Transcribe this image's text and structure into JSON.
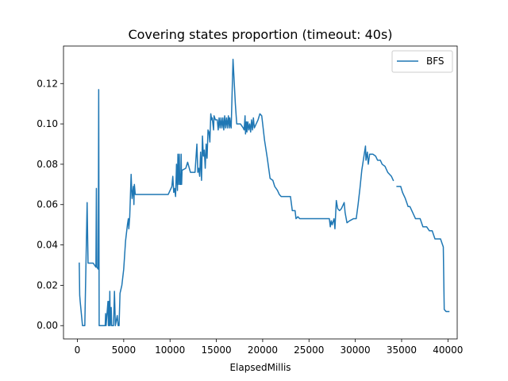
{
  "chart_data": {
    "type": "line",
    "title": "Covering states proportion (timeout: 40s)",
    "xlabel": "ElapsedMillis",
    "ylabel": "",
    "xlim": [
      -1500,
      41000
    ],
    "ylim": [
      -0.0066,
      0.1386
    ],
    "xticks": [
      0,
      5000,
      10000,
      15000,
      20000,
      25000,
      30000,
      35000,
      40000
    ],
    "xtick_labels": [
      "0",
      "5000",
      "10000",
      "15000",
      "20000",
      "25000",
      "30000",
      "35000",
      "40000"
    ],
    "yticks": [
      0.0,
      0.02,
      0.04,
      0.06,
      0.08,
      0.1,
      0.12
    ],
    "ytick_labels": [
      "0.00",
      "0.02",
      "0.04",
      "0.06",
      "0.08",
      "0.10",
      "0.12"
    ],
    "grid": false,
    "legend_position": "upper right",
    "series": [
      {
        "name": "BFS",
        "color": "#1f77b4",
        "segments": [
          [
            [
              200,
              0.031
            ],
            [
              250,
              0.015
            ],
            [
              300,
              0.012
            ],
            [
              550,
              0.0
            ],
            [
              800,
              0.0
            ],
            [
              1050,
              0.061
            ],
            [
              1150,
              0.031
            ],
            [
              1700,
              0.031
            ],
            [
              2000,
              0.029
            ],
            [
              2050,
              0.068
            ],
            [
              2100,
              0.029
            ],
            [
              2250,
              0.028
            ],
            [
              2300,
              0.117
            ],
            [
              2350,
              0.0
            ],
            [
              3000,
              0.0
            ],
            [
              3050,
              0.006
            ],
            [
              3100,
              0.0
            ],
            [
              3300,
              0.012
            ],
            [
              3350,
              0.0
            ],
            [
              3400,
              0.012
            ],
            [
              3450,
              0.0
            ],
            [
              3500,
              0.017
            ],
            [
              3550,
              0.0
            ],
            [
              3650,
              0.009
            ],
            [
              3700,
              0.0
            ],
            [
              3900,
              0.0
            ],
            [
              4000,
              0.017
            ],
            [
              4100,
              0.0
            ],
            [
              4300,
              0.005
            ],
            [
              4400,
              0.0
            ],
            [
              4500,
              0.0
            ],
            [
              4600,
              0.016
            ],
            [
              4800,
              0.02
            ],
            [
              5000,
              0.028
            ],
            [
              5200,
              0.042
            ],
            [
              5400,
              0.05
            ],
            [
              5500,
              0.053
            ],
            [
              5550,
              0.048
            ],
            [
              5650,
              0.054
            ],
            [
              5800,
              0.075
            ],
            [
              5900,
              0.063
            ],
            [
              6050,
              0.069
            ],
            [
              6100,
              0.06
            ],
            [
              6150,
              0.07
            ],
            [
              6250,
              0.065
            ],
            [
              6800,
              0.065
            ],
            [
              9800,
              0.065
            ],
            [
              10200,
              0.069
            ],
            [
              10300,
              0.074
            ],
            [
              10400,
              0.066
            ],
            [
              10500,
              0.068
            ],
            [
              10600,
              0.064
            ],
            [
              10700,
              0.08
            ],
            [
              10800,
              0.067
            ],
            [
              10850,
              0.085
            ],
            [
              10900,
              0.07
            ],
            [
              11000,
              0.085
            ],
            [
              11050,
              0.07
            ],
            [
              11100,
              0.075
            ],
            [
              11150,
              0.07
            ],
            [
              11200,
              0.085
            ],
            [
              11250,
              0.07
            ],
            [
              11300,
              0.077
            ],
            [
              11700,
              0.078
            ],
            [
              11900,
              0.081
            ],
            [
              12200,
              0.076
            ],
            [
              12700,
              0.076
            ],
            [
              12900,
              0.09
            ],
            [
              13000,
              0.076
            ],
            [
              13100,
              0.078
            ],
            [
              13200,
              0.074
            ],
            [
              13300,
              0.086
            ],
            [
              13400,
              0.072
            ],
            [
              13500,
              0.094
            ],
            [
              13600,
              0.084
            ],
            [
              13700,
              0.087
            ],
            [
              13800,
              0.078
            ],
            [
              13900,
              0.09
            ],
            [
              14000,
              0.083
            ],
            [
              14100,
              0.097
            ],
            [
              14200,
              0.096
            ],
            [
              14300,
              0.091
            ],
            [
              14400,
              0.105
            ],
            [
              14500,
              0.102
            ],
            [
              14550,
              0.103
            ],
            [
              14700,
              0.097
            ],
            [
              14750,
              0.104
            ],
            [
              14900,
              0.102
            ],
            [
              15100,
              0.102
            ],
            [
              15200,
              0.097
            ],
            [
              15300,
              0.103
            ],
            [
              15400,
              0.098
            ],
            [
              15500,
              0.103
            ],
            [
              15600,
              0.098
            ],
            [
              15700,
              0.103
            ],
            [
              15800,
              0.097
            ],
            [
              15900,
              0.104
            ],
            [
              16000,
              0.098
            ],
            [
              16100,
              0.103
            ],
            [
              16200,
              0.098
            ],
            [
              16300,
              0.104
            ],
            [
              16400,
              0.098
            ],
            [
              16450,
              0.103
            ],
            [
              16550,
              0.099
            ],
            [
              16600,
              0.098
            ],
            [
              16800,
              0.132
            ],
            [
              17050,
              0.11
            ],
            [
              17200,
              0.1
            ],
            [
              17600,
              0.1
            ],
            [
              17900,
              0.098
            ],
            [
              18000,
              0.097
            ],
            [
              18100,
              0.104
            ],
            [
              18150,
              0.095
            ],
            [
              18250,
              0.101
            ],
            [
              18300,
              0.096
            ],
            [
              18400,
              0.101
            ],
            [
              18500,
              0.097
            ],
            [
              18600,
              0.1
            ],
            [
              18700,
              0.096
            ],
            [
              18800,
              0.102
            ],
            [
              18900,
              0.097
            ],
            [
              19000,
              0.103
            ],
            [
              19100,
              0.098
            ],
            [
              19300,
              0.1
            ],
            [
              19500,
              0.102
            ],
            [
              19700,
              0.105
            ],
            [
              19900,
              0.104
            ],
            [
              20000,
              0.1
            ],
            [
              20200,
              0.092
            ],
            [
              20500,
              0.083
            ],
            [
              20800,
              0.073
            ],
            [
              21100,
              0.072
            ],
            [
              21300,
              0.069
            ],
            [
              21600,
              0.067
            ],
            [
              21800,
              0.065
            ],
            [
              22000,
              0.064
            ],
            [
              22300,
              0.064
            ],
            [
              22500,
              0.064
            ],
            [
              23000,
              0.064
            ],
            [
              23200,
              0.057
            ],
            [
              23500,
              0.057
            ],
            [
              23600,
              0.053
            ],
            [
              23800,
              0.054
            ],
            [
              24000,
              0.053
            ],
            [
              25500,
              0.053
            ],
            [
              27000,
              0.053
            ],
            [
              27200,
              0.053
            ],
            [
              27300,
              0.049
            ],
            [
              27400,
              0.052
            ],
            [
              27500,
              0.05
            ],
            [
              27700,
              0.053
            ],
            [
              27800,
              0.048
            ],
            [
              27950,
              0.062
            ],
            [
              28100,
              0.058
            ],
            [
              28300,
              0.057
            ],
            [
              28500,
              0.058
            ],
            [
              28800,
              0.061
            ],
            [
              28900,
              0.056
            ],
            [
              29100,
              0.051
            ],
            [
              29400,
              0.052
            ],
            [
              29800,
              0.053
            ],
            [
              30100,
              0.053
            ],
            [
              30300,
              0.06
            ],
            [
              30500,
              0.068
            ],
            [
              30700,
              0.077
            ],
            [
              30900,
              0.083
            ],
            [
              31100,
              0.089
            ],
            [
              31150,
              0.082
            ],
            [
              31300,
              0.086
            ],
            [
              31400,
              0.08
            ],
            [
              31550,
              0.085
            ],
            [
              31700,
              0.085
            ],
            [
              31900,
              0.085
            ],
            [
              32200,
              0.084
            ],
            [
              32400,
              0.082
            ],
            [
              32700,
              0.082
            ],
            [
              32900,
              0.08
            ],
            [
              33200,
              0.079
            ],
            [
              33500,
              0.076
            ],
            [
              33900,
              0.074
            ],
            [
              34100,
              0.072
            ]
          ],
          [
            [
              34500,
              0.069
            ],
            [
              34900,
              0.069
            ],
            [
              35100,
              0.066
            ],
            [
              35400,
              0.063
            ],
            [
              35700,
              0.059
            ],
            [
              35900,
              0.059
            ],
            [
              36200,
              0.056
            ],
            [
              36500,
              0.053
            ],
            [
              37000,
              0.053
            ],
            [
              37300,
              0.049
            ],
            [
              37700,
              0.049
            ],
            [
              38000,
              0.047
            ],
            [
              38300,
              0.047
            ],
            [
              38600,
              0.043
            ],
            [
              38900,
              0.043
            ],
            [
              39200,
              0.043
            ],
            [
              39500,
              0.039
            ],
            [
              39600,
              0.008
            ],
            [
              39800,
              0.007
            ],
            [
              40100,
              0.007
            ]
          ]
        ]
      }
    ]
  }
}
